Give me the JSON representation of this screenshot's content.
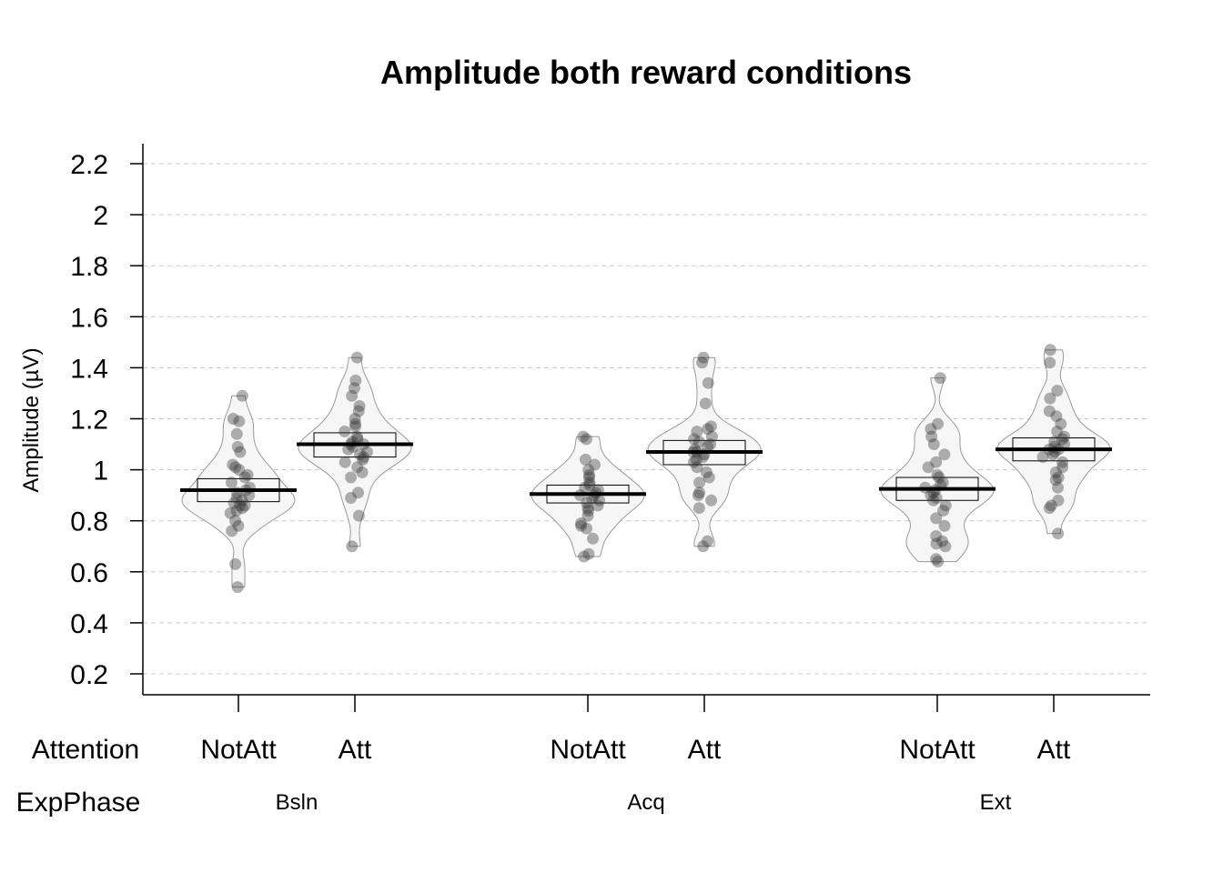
{
  "chart_data": {
    "type": "scatter",
    "title": "Amplitude both reward conditions",
    "ylabel": "Amplitude (µV)",
    "ylim": [
      0.12,
      2.28
    ],
    "yticks": [
      0.2,
      0.4,
      0.6,
      0.8,
      1,
      1.2,
      1.4,
      1.6,
      1.8,
      2,
      2.2
    ],
    "ytick_labels": [
      "0.2",
      "0.4",
      "0.6",
      "0.8",
      "1",
      "1.2",
      "1.4",
      "1.6",
      "1.8",
      "2",
      "2.2"
    ],
    "grid": true,
    "factor_rows": [
      {
        "name": "Attention"
      },
      {
        "name": "ExpPhase"
      }
    ],
    "phases": [
      "Bsln",
      "Acq",
      "Ext"
    ],
    "groups": [
      {
        "attention": "NotAtt",
        "phase": "Bsln",
        "mean": 0.92,
        "box": [
          0.875,
          0.965
        ],
        "points": [
          1.29,
          1.2,
          1.19,
          1.14,
          1.09,
          1.07,
          1.02,
          1.01,
          1.0,
          0.98,
          0.97,
          0.95,
          0.93,
          0.92,
          0.91,
          0.9,
          0.89,
          0.88,
          0.87,
          0.86,
          0.86,
          0.85,
          0.84,
          0.83,
          0.8,
          0.78,
          0.76,
          0.63,
          0.54
        ]
      },
      {
        "attention": "Att",
        "phase": "Bsln",
        "mean": 1.1,
        "box": [
          1.05,
          1.145
        ],
        "points": [
          1.44,
          1.35,
          1.32,
          1.29,
          1.25,
          1.23,
          1.2,
          1.18,
          1.17,
          1.15,
          1.13,
          1.12,
          1.11,
          1.1,
          1.1,
          1.09,
          1.08,
          1.07,
          1.06,
          1.05,
          1.04,
          1.03,
          1.01,
          0.99,
          0.97,
          0.91,
          0.89,
          0.82,
          0.7
        ]
      },
      {
        "attention": "NotAtt",
        "phase": "Acq",
        "mean": 0.905,
        "box": [
          0.87,
          0.94
        ],
        "points": [
          1.13,
          1.12,
          1.04,
          1.02,
          1.0,
          0.98,
          0.97,
          0.95,
          0.94,
          0.93,
          0.92,
          0.91,
          0.9,
          0.9,
          0.89,
          0.88,
          0.87,
          0.86,
          0.85,
          0.84,
          0.82,
          0.79,
          0.78,
          0.77,
          0.73,
          0.67,
          0.66
        ]
      },
      {
        "attention": "Att",
        "phase": "Acq",
        "mean": 1.07,
        "box": [
          1.02,
          1.115
        ],
        "points": [
          1.44,
          1.42,
          1.34,
          1.26,
          1.17,
          1.16,
          1.15,
          1.13,
          1.12,
          1.11,
          1.1,
          1.09,
          1.08,
          1.07,
          1.07,
          1.06,
          1.05,
          1.04,
          1.03,
          1.01,
          0.99,
          0.97,
          0.95,
          0.91,
          0.9,
          0.88,
          0.85,
          0.72,
          0.7
        ]
      },
      {
        "attention": "NotAtt",
        "phase": "Ext",
        "mean": 0.925,
        "box": [
          0.88,
          0.97
        ],
        "points": [
          1.36,
          1.18,
          1.16,
          1.13,
          1.1,
          1.06,
          1.03,
          1.01,
          0.98,
          0.97,
          0.95,
          0.94,
          0.93,
          0.92,
          0.91,
          0.9,
          0.89,
          0.88,
          0.86,
          0.84,
          0.81,
          0.78,
          0.74,
          0.72,
          0.71,
          0.7,
          0.65,
          0.64
        ]
      },
      {
        "attention": "Att",
        "phase": "Ext",
        "mean": 1.08,
        "box": [
          1.035,
          1.125
        ],
        "points": [
          1.47,
          1.42,
          1.31,
          1.28,
          1.23,
          1.21,
          1.18,
          1.15,
          1.13,
          1.12,
          1.11,
          1.1,
          1.09,
          1.08,
          1.08,
          1.07,
          1.06,
          1.05,
          1.03,
          1.01,
          0.99,
          0.97,
          0.96,
          0.93,
          0.88,
          0.86,
          0.85,
          0.75
        ]
      }
    ]
  }
}
